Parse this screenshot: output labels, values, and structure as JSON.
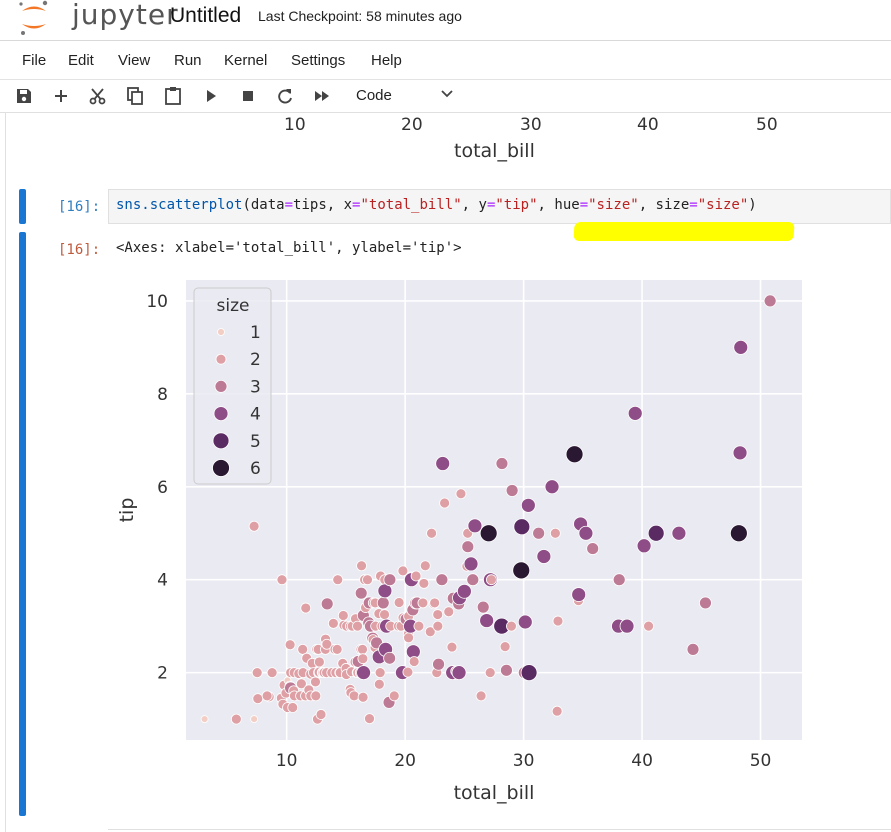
{
  "app": {
    "logo_text": "jupyter",
    "notebook_title": "Untitled",
    "checkpoint": "Last Checkpoint: 58 minutes ago"
  },
  "menu": [
    "File",
    "Edit",
    "View",
    "Run",
    "Kernel",
    "Settings",
    "Help"
  ],
  "toolbar": {
    "icons": [
      "save-icon",
      "add-icon",
      "cut-icon",
      "copy-icon",
      "paste-icon",
      "run-icon",
      "stop-icon",
      "restart-icon",
      "fast-forward-icon"
    ],
    "cell_type": "Code"
  },
  "prev_output": {
    "ticks": [
      "10",
      "20",
      "30",
      "40",
      "50"
    ],
    "xlabel": "total_bill"
  },
  "cell": {
    "in_prompt": "[16]:",
    "out_prompt": "[16]:",
    "code_parts": [
      {
        "t": "sns.scatterplot",
        "c": "fn"
      },
      {
        "t": "(data",
        "c": "plain"
      },
      {
        "t": "=",
        "c": "kw"
      },
      {
        "t": "tips, x",
        "c": "plain"
      },
      {
        "t": "=",
        "c": "kw"
      },
      {
        "t": "\"total_bill\"",
        "c": "str"
      },
      {
        "t": ", y",
        "c": "plain"
      },
      {
        "t": "=",
        "c": "kw"
      },
      {
        "t": "\"tip\"",
        "c": "str"
      },
      {
        "t": ", hue",
        "c": "plain"
      },
      {
        "t": "=",
        "c": "kw"
      },
      {
        "t": "\"size\"",
        "c": "str"
      },
      {
        "t": ", size",
        "c": "plain"
      },
      {
        "t": "=",
        "c": "kw"
      },
      {
        "t": "\"size\"",
        "c": "str"
      },
      {
        "t": ")",
        "c": "plain"
      }
    ],
    "output_text": "<Axes: xlabel='total_bill', ylabel='tip'>",
    "highlight_color": "#ffff00"
  },
  "chart_data": {
    "type": "scatter",
    "xlabel": "total_bill",
    "ylabel": "tip",
    "xlim": [
      1.5,
      53.5
    ],
    "ylim": [
      0.55,
      10.45
    ],
    "xticks": [
      10,
      20,
      30,
      40,
      50
    ],
    "yticks": [
      2,
      4,
      6,
      8,
      10
    ],
    "grid": true,
    "background": "#eaeaf2",
    "legend": {
      "title": "size",
      "placement": "top-left",
      "entries": [
        {
          "label": "1",
          "color": "#f3cec4",
          "r": 3.5
        },
        {
          "label": "2",
          "color": "#dea0a5",
          "r": 5
        },
        {
          "label": "3",
          "color": "#bd7a94",
          "r": 6
        },
        {
          "label": "4",
          "color": "#8e4d86",
          "r": 7
        },
        {
          "label": "5",
          "color": "#5a2b62",
          "r": 8
        },
        {
          "label": "6",
          "color": "#2a1832",
          "r": 8.5
        }
      ]
    },
    "points": [
      [
        3.07,
        1.0,
        1
      ],
      [
        5.75,
        1.0,
        2
      ],
      [
        7.25,
        1.0,
        1
      ],
      [
        7.25,
        5.15,
        2
      ],
      [
        7.51,
        2.0,
        2
      ],
      [
        7.56,
        1.44,
        2
      ],
      [
        8.52,
        1.48,
        2
      ],
      [
        8.35,
        1.5,
        2
      ],
      [
        8.77,
        2.0,
        2
      ],
      [
        9.6,
        4.0,
        2
      ],
      [
        9.55,
        1.45,
        2
      ],
      [
        9.68,
        1.32,
        2
      ],
      [
        9.78,
        1.73,
        2
      ],
      [
        9.94,
        1.56,
        2
      ],
      [
        10.07,
        1.25,
        2
      ],
      [
        10.07,
        1.83,
        1
      ],
      [
        10.27,
        1.71,
        2
      ],
      [
        10.29,
        2.6,
        2
      ],
      [
        10.33,
        1.67,
        3
      ],
      [
        10.34,
        2.0,
        2
      ],
      [
        10.51,
        1.25,
        2
      ],
      [
        10.59,
        1.61,
        2
      ],
      [
        10.63,
        2.0,
        2
      ],
      [
        10.65,
        1.5,
        2
      ],
      [
        11.02,
        1.98,
        2
      ],
      [
        11.17,
        1.5,
        2
      ],
      [
        11.24,
        1.76,
        2
      ],
      [
        11.35,
        2.5,
        2
      ],
      [
        11.38,
        2.0,
        2
      ],
      [
        11.59,
        1.5,
        2
      ],
      [
        11.61,
        3.39,
        2
      ],
      [
        11.69,
        2.31,
        2
      ],
      [
        11.87,
        1.63,
        2
      ],
      [
        12.02,
        1.97,
        2
      ],
      [
        12.03,
        1.5,
        2
      ],
      [
        12.16,
        2.2,
        2
      ],
      [
        12.26,
        2.0,
        2
      ],
      [
        12.43,
        1.8,
        2
      ],
      [
        12.46,
        1.5,
        2
      ],
      [
        12.54,
        2.5,
        2
      ],
      [
        12.6,
        1.0,
        2
      ],
      [
        12.66,
        2.5,
        2
      ],
      [
        12.69,
        2.0,
        2
      ],
      [
        12.74,
        2.01,
        2
      ],
      [
        12.76,
        2.23,
        2
      ],
      [
        12.9,
        1.1,
        2
      ],
      [
        13.0,
        2.0,
        2
      ],
      [
        13.03,
        2.0,
        2
      ],
      [
        13.13,
        2.0,
        2
      ],
      [
        13.16,
        2.0,
        2
      ],
      [
        13.27,
        2.5,
        2
      ],
      [
        13.28,
        2.72,
        2
      ],
      [
        13.37,
        2.0,
        2
      ],
      [
        13.39,
        2.61,
        2
      ],
      [
        13.42,
        3.48,
        3
      ],
      [
        13.81,
        2.0,
        2
      ],
      [
        13.94,
        3.06,
        2
      ],
      [
        14.07,
        2.5,
        2
      ],
      [
        14.15,
        2.0,
        2
      ],
      [
        14.26,
        2.5,
        2
      ],
      [
        14.31,
        4.0,
        2
      ],
      [
        14.48,
        2.0,
        2
      ],
      [
        14.52,
        2.0,
        2
      ],
      [
        14.73,
        2.2,
        2
      ],
      [
        14.78,
        3.23,
        2
      ],
      [
        14.83,
        3.02,
        2
      ],
      [
        15.01,
        2.09,
        2
      ],
      [
        15.04,
        1.96,
        2
      ],
      [
        15.06,
        3.0,
        2
      ],
      [
        15.36,
        1.64,
        2
      ],
      [
        15.38,
        3.0,
        2
      ],
      [
        15.42,
        1.57,
        2
      ],
      [
        15.48,
        2.02,
        2
      ],
      [
        15.53,
        3.0,
        2
      ],
      [
        15.69,
        1.5,
        2
      ],
      [
        15.77,
        2.23,
        2
      ],
      [
        15.81,
        3.16,
        2
      ],
      [
        15.95,
        2.0,
        2
      ],
      [
        15.98,
        3.0,
        2
      ],
      [
        16.0,
        2.0,
        2
      ],
      [
        16.04,
        2.24,
        3
      ],
      [
        16.21,
        2.0,
        2
      ],
      [
        16.27,
        2.5,
        2
      ],
      [
        16.29,
        3.71,
        3
      ],
      [
        16.31,
        2.0,
        3
      ],
      [
        16.32,
        4.3,
        2
      ],
      [
        16.4,
        2.5,
        2
      ],
      [
        16.43,
        2.3,
        2
      ],
      [
        16.45,
        1.47,
        2
      ],
      [
        16.47,
        3.23,
        3
      ],
      [
        16.49,
        2.0,
        4
      ],
      [
        16.58,
        4.0,
        2
      ],
      [
        16.66,
        3.4,
        2
      ],
      [
        16.82,
        4.0,
        2
      ],
      [
        16.93,
        3.07,
        3
      ],
      [
        16.97,
        3.5,
        3
      ],
      [
        16.99,
        1.01,
        2
      ],
      [
        17.07,
        3.0,
        3
      ],
      [
        17.26,
        2.74,
        3
      ],
      [
        17.29,
        2.71,
        2
      ],
      [
        17.31,
        3.5,
        2
      ],
      [
        17.46,
        2.54,
        2
      ],
      [
        17.47,
        3.5,
        2
      ],
      [
        17.51,
        3.0,
        2
      ],
      [
        17.59,
        2.64,
        3
      ],
      [
        17.78,
        3.27,
        2
      ],
      [
        17.81,
        2.34,
        4
      ],
      [
        17.82,
        1.75,
        2
      ],
      [
        17.89,
        2.0,
        2
      ],
      [
        17.92,
        4.08,
        2
      ],
      [
        18.04,
        3.0,
        2
      ],
      [
        18.15,
        3.5,
        3
      ],
      [
        18.24,
        3.76,
        2
      ],
      [
        18.26,
        3.25,
        2
      ],
      [
        18.28,
        4.0,
        2
      ],
      [
        18.29,
        3.76,
        4
      ],
      [
        18.29,
        3.0,
        2
      ],
      [
        18.35,
        2.5,
        4
      ],
      [
        18.43,
        3.0,
        4
      ],
      [
        18.64,
        1.36,
        3
      ],
      [
        18.69,
        2.31,
        3
      ],
      [
        18.71,
        4.0,
        3
      ],
      [
        18.78,
        3.0,
        2
      ],
      [
        19.08,
        1.5,
        2
      ],
      [
        19.44,
        3.0,
        2
      ],
      [
        19.49,
        3.51,
        2
      ],
      [
        19.65,
        3.0,
        2
      ],
      [
        19.77,
        2.0,
        4
      ],
      [
        19.81,
        4.19,
        2
      ],
      [
        19.82,
        3.18,
        2
      ],
      [
        20.08,
        3.15,
        3
      ],
      [
        20.23,
        2.01,
        2
      ],
      [
        20.27,
        2.83,
        2
      ],
      [
        20.29,
        2.75,
        2
      ],
      [
        20.29,
        3.21,
        2
      ],
      [
        20.45,
        3.0,
        4
      ],
      [
        20.49,
        4.06,
        2
      ],
      [
        20.53,
        4.0,
        4
      ],
      [
        20.65,
        3.35,
        3
      ],
      [
        20.69,
        2.45,
        4
      ],
      [
        20.76,
        2.24,
        2
      ],
      [
        20.9,
        3.5,
        3
      ],
      [
        20.92,
        4.08,
        2
      ],
      [
        21.01,
        3.5,
        3
      ],
      [
        21.16,
        3.0,
        2
      ],
      [
        21.5,
        3.5,
        2
      ],
      [
        21.58,
        3.92,
        2
      ],
      [
        21.7,
        4.3,
        2
      ],
      [
        22.12,
        2.88,
        2
      ],
      [
        22.23,
        5.0,
        2
      ],
      [
        22.42,
        3.48,
        2
      ],
      [
        22.49,
        3.5,
        2
      ],
      [
        22.67,
        2.0,
        2
      ],
      [
        22.75,
        3.25,
        2
      ],
      [
        22.76,
        3.0,
        2
      ],
      [
        22.82,
        2.18,
        3
      ],
      [
        23.1,
        4.0,
        3
      ],
      [
        23.17,
        6.5,
        4
      ],
      [
        23.33,
        5.65,
        2
      ],
      [
        23.68,
        3.31,
        2
      ],
      [
        23.95,
        2.55,
        2
      ],
      [
        24.01,
        2.0,
        4
      ],
      [
        24.06,
        3.6,
        3
      ],
      [
        24.27,
        2.03,
        2
      ],
      [
        24.52,
        3.48,
        3
      ],
      [
        24.55,
        2.0,
        4
      ],
      [
        24.59,
        3.61,
        4
      ],
      [
        24.71,
        5.85,
        2
      ],
      [
        25.0,
        3.75,
        4
      ],
      [
        25.21,
        4.29,
        2
      ],
      [
        25.28,
        5.0,
        2
      ],
      [
        25.29,
        4.71,
        3
      ],
      [
        25.56,
        4.34,
        4
      ],
      [
        25.71,
        4.0,
        3
      ],
      [
        25.89,
        5.16,
        4
      ],
      [
        26.41,
        1.5,
        2
      ],
      [
        26.59,
        3.41,
        3
      ],
      [
        26.86,
        3.14,
        2
      ],
      [
        26.88,
        3.12,
        4
      ],
      [
        27.05,
        5.0,
        6
      ],
      [
        27.18,
        2.0,
        2
      ],
      [
        27.2,
        4.0,
        4
      ],
      [
        27.28,
        4.0,
        2
      ],
      [
        28.15,
        3.0,
        5
      ],
      [
        28.17,
        6.5,
        3
      ],
      [
        28.44,
        2.56,
        2
      ],
      [
        28.55,
        2.05,
        3
      ],
      [
        28.97,
        3.0,
        2
      ],
      [
        29.03,
        5.92,
        3
      ],
      [
        29.8,
        4.2,
        6
      ],
      [
        29.85,
        5.14,
        5
      ],
      [
        30.06,
        2.0,
        3
      ],
      [
        30.14,
        3.09,
        4
      ],
      [
        30.4,
        5.6,
        4
      ],
      [
        30.46,
        2.0,
        5
      ],
      [
        31.27,
        5.0,
        3
      ],
      [
        31.71,
        4.5,
        4
      ],
      [
        32.4,
        6.0,
        4
      ],
      [
        32.68,
        5.0,
        2
      ],
      [
        32.83,
        1.17,
        2
      ],
      [
        32.9,
        3.11,
        2
      ],
      [
        34.3,
        6.7,
        6
      ],
      [
        34.63,
        3.55,
        2
      ],
      [
        34.65,
        3.68,
        4
      ],
      [
        34.81,
        5.2,
        4
      ],
      [
        35.26,
        5.0,
        4
      ],
      [
        35.83,
        4.67,
        3
      ],
      [
        38.01,
        3.0,
        4
      ],
      [
        38.07,
        4.0,
        3
      ],
      [
        38.73,
        3.0,
        4
      ],
      [
        39.42,
        7.58,
        4
      ],
      [
        40.17,
        4.73,
        4
      ],
      [
        40.55,
        3.0,
        2
      ],
      [
        41.19,
        5.0,
        5
      ],
      [
        43.11,
        5.0,
        4
      ],
      [
        44.3,
        2.5,
        3
      ],
      [
        45.35,
        3.5,
        3
      ],
      [
        48.17,
        5.0,
        6
      ],
      [
        48.27,
        6.73,
        4
      ],
      [
        48.33,
        9.0,
        4
      ],
      [
        50.81,
        10.0,
        3
      ]
    ]
  }
}
